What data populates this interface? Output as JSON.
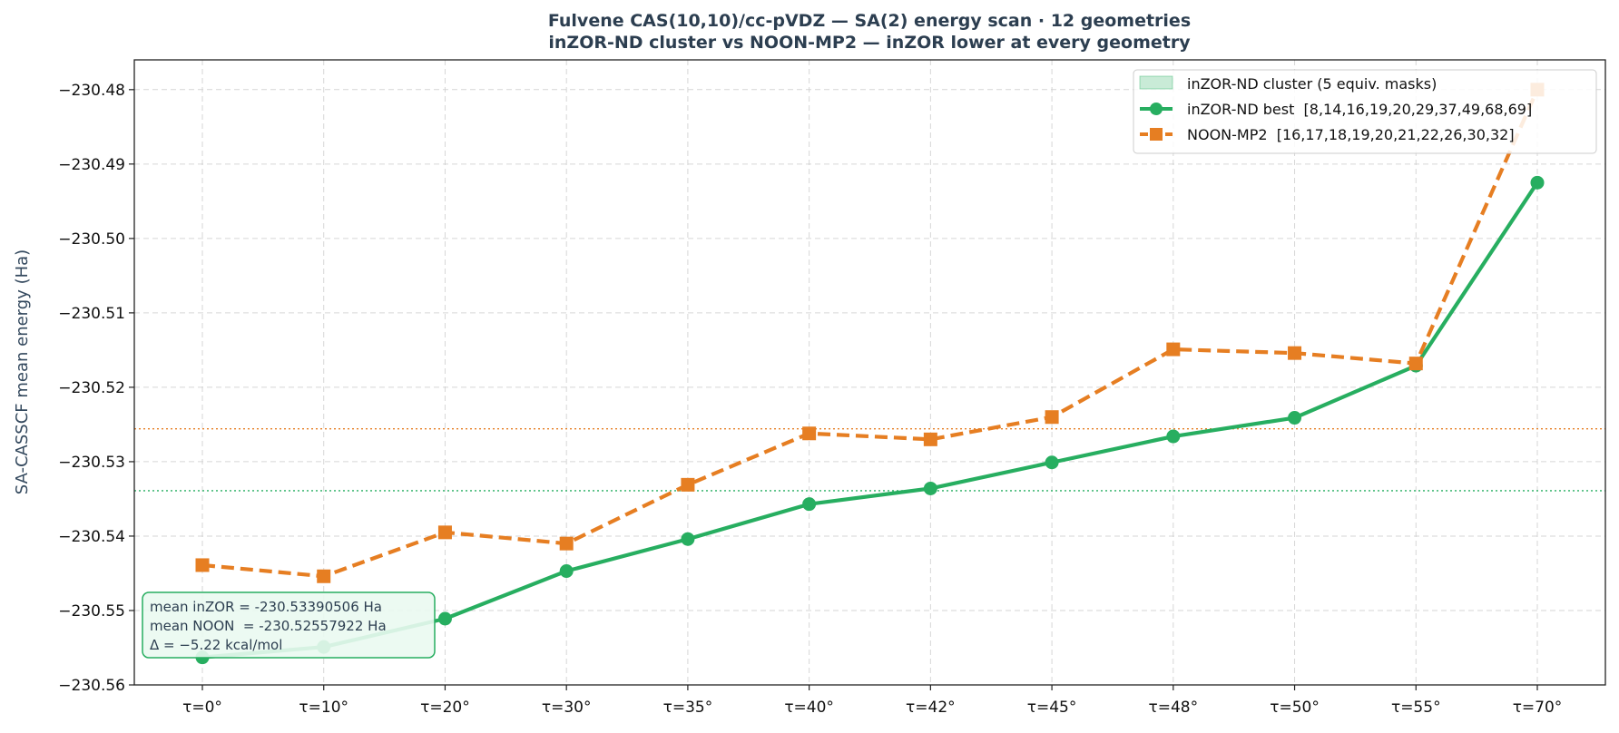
{
  "chart_data": {
    "type": "line",
    "title_line1": "Fulvene CAS(10,10)/cc-pVDZ — SA(2) energy scan · 12 geometries",
    "title_line2": "inZOR-ND cluster vs NOON-MP2 — inZOR lower at every geometry",
    "ylabel": "SA-CASSCF mean energy (Ha)",
    "xlabel": "",
    "ylim": [
      -230.56,
      -230.476
    ],
    "yticks": [
      -230.56,
      -230.55,
      -230.54,
      -230.53,
      -230.52,
      -230.51,
      -230.5,
      -230.49,
      -230.48
    ],
    "ytick_labels": [
      "−230.56",
      "−230.55",
      "−230.54",
      "−230.53",
      "−230.52",
      "−230.51",
      "−230.50",
      "−230.49",
      "−230.48"
    ],
    "categories": [
      "τ=0°",
      "τ=10°",
      "τ=20°",
      "τ=30°",
      "τ=35°",
      "τ=40°",
      "τ=42°",
      "τ=45°",
      "τ=48°",
      "τ=50°",
      "τ=55°",
      "τ=70°"
    ],
    "grid": true,
    "legend_position": "top-right",
    "series": [
      {
        "name": "inZOR-ND cluster (5 equiv. masks)",
        "style": "band",
        "color": "#27ae60",
        "values": [
          -230.5563,
          -230.5549,
          -230.5511,
          -230.5447,
          -230.5404,
          -230.5357,
          -230.5336,
          -230.5301,
          -230.5266,
          -230.5241,
          -230.5171,
          -230.4925
        ]
      },
      {
        "name": "inZOR-ND best  [8,14,16,19,20,29,37,49,68,69]",
        "style": "solid-circle",
        "color": "#27ae60",
        "values": [
          -230.5563,
          -230.5549,
          -230.5511,
          -230.5447,
          -230.5404,
          -230.5357,
          -230.5336,
          -230.5301,
          -230.5266,
          -230.5241,
          -230.5171,
          -230.4925
        ]
      },
      {
        "name": "NOON-MP2  [16,17,18,19,20,21,22,26,30,32]",
        "style": "dashed-square",
        "color": "#e67e22",
        "values": [
          -230.5439,
          -230.5454,
          -230.5395,
          -230.541,
          -230.5331,
          -230.5262,
          -230.527,
          -230.524,
          -230.5149,
          -230.5154,
          -230.5168,
          -230.48
        ]
      }
    ],
    "reference_lines": [
      {
        "value": -230.53390506,
        "color": "#27ae60"
      },
      {
        "value": -230.52557922,
        "color": "#e67e22"
      }
    ],
    "annotation": {
      "line1": "mean inZOR = -230.53390506 Ha",
      "line2": "mean NOON  = -230.52557922 Ha",
      "line3": "Δ = −5.22 kcal/mol"
    }
  }
}
